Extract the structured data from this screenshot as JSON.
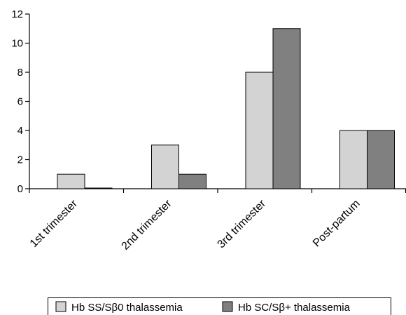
{
  "chart_data": {
    "type": "bar",
    "title": "",
    "xlabel": "",
    "ylabel": "",
    "categories": [
      "1st trimester",
      "2nd trimester",
      "3rd trimester",
      "Post-partum"
    ],
    "series": [
      {
        "name": "Hb SS/Sβ0 thalassemia",
        "values": [
          1,
          3,
          8,
          4
        ],
        "color": "#d3d3d3"
      },
      {
        "name": "Hb SC/Sβ+ thalassemia",
        "values": [
          0,
          1,
          11,
          4
        ],
        "color": "#808080"
      }
    ],
    "ylim": [
      0,
      12
    ],
    "yticks": [
      0,
      2,
      4,
      6,
      8,
      10,
      12
    ],
    "grid": false,
    "legend_position": "bottom"
  }
}
